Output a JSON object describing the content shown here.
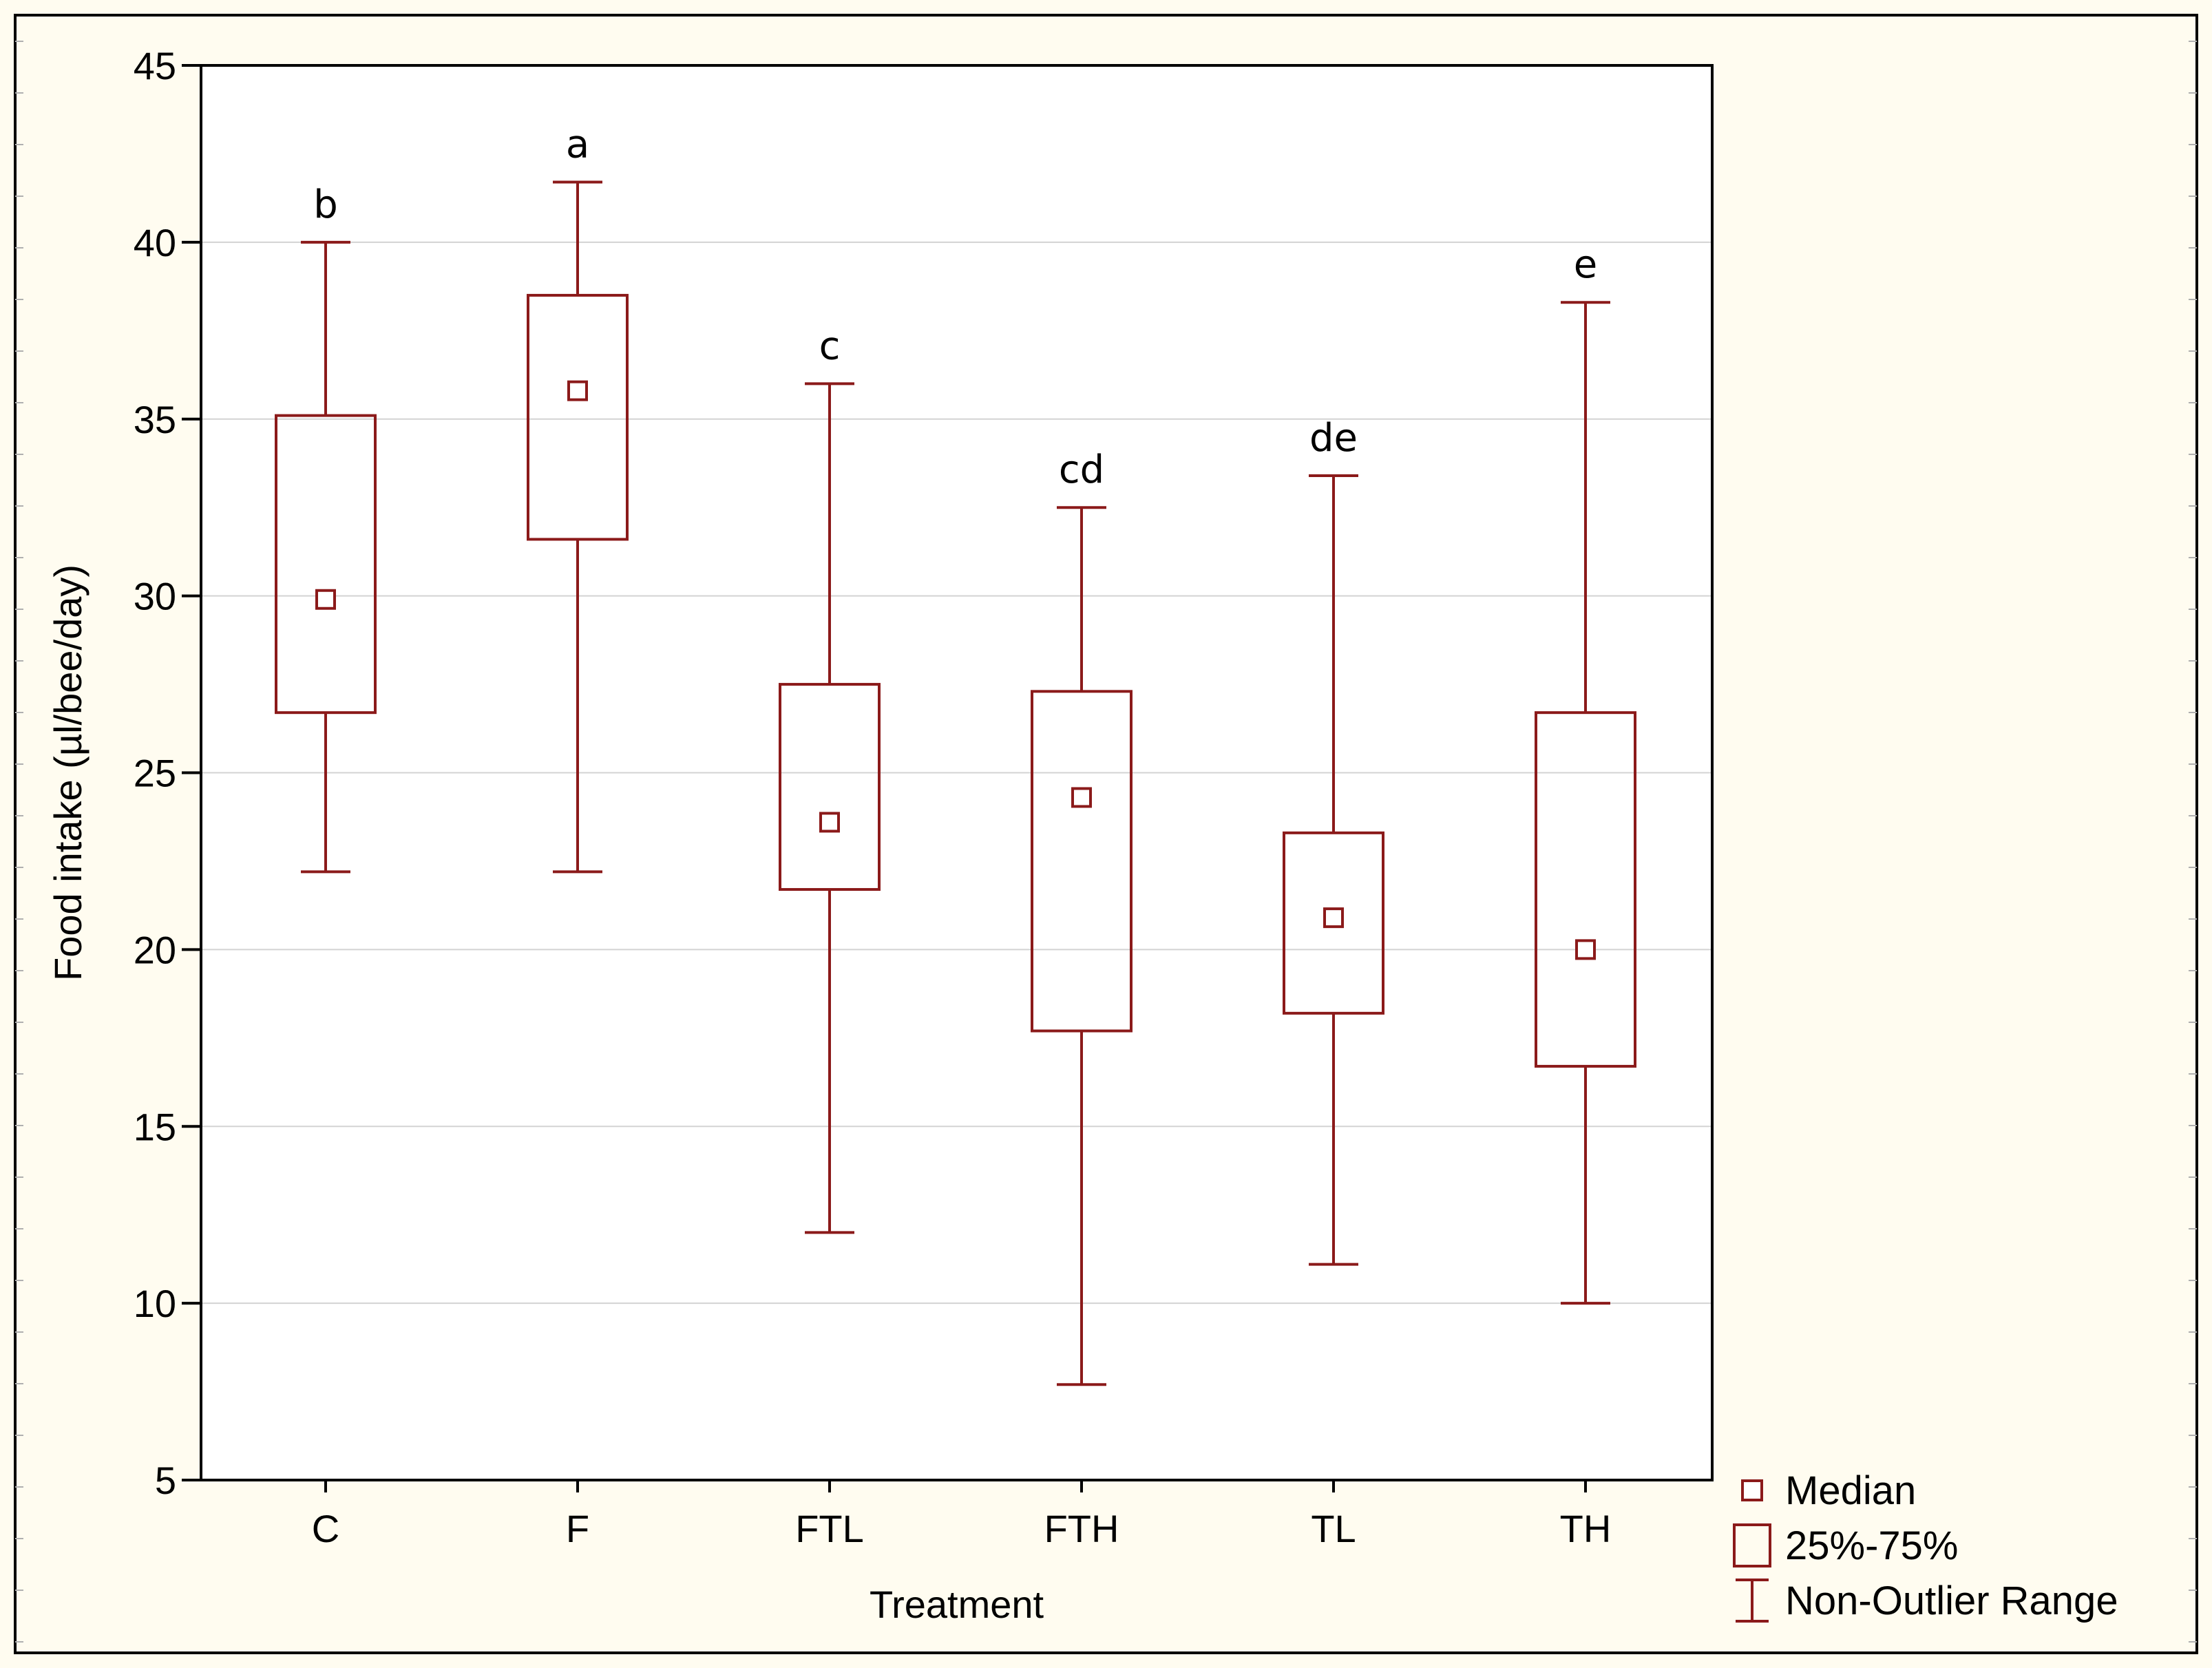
{
  "colors": {
    "page_bg": "#fffcf0",
    "plot_bg": "#ffffff",
    "series": "#8b1a1a",
    "grid": "#d3d3d3",
    "axis": "#000000"
  },
  "chart_data": {
    "type": "boxplot",
    "title": "",
    "xlabel": "Treatment",
    "ylabel": "Food intake (µl/bee/day)",
    "ylim": [
      5,
      45
    ],
    "yticks": [
      5,
      10,
      15,
      20,
      25,
      30,
      35,
      40,
      45
    ],
    "grid": true,
    "categories": [
      "C",
      "F",
      "FTL",
      "FTH",
      "TL",
      "TH"
    ],
    "groups": [
      {
        "category": "C",
        "median": 29.9,
        "q1": 26.7,
        "q3": 35.1,
        "whisker_low": 22.2,
        "whisker_high": 40.0,
        "letter": "b"
      },
      {
        "category": "F",
        "median": 35.8,
        "q1": 31.6,
        "q3": 38.5,
        "whisker_low": 22.2,
        "whisker_high": 41.7,
        "letter": "a"
      },
      {
        "category": "FTL",
        "median": 23.6,
        "q1": 21.7,
        "q3": 27.5,
        "whisker_low": 12.0,
        "whisker_high": 36.0,
        "letter": "c"
      },
      {
        "category": "FTH",
        "median": 24.3,
        "q1": 17.7,
        "q3": 27.3,
        "whisker_low": 7.7,
        "whisker_high": 32.5,
        "letter": "cd"
      },
      {
        "category": "TL",
        "median": 20.9,
        "q1": 18.2,
        "q3": 23.3,
        "whisker_low": 11.1,
        "whisker_high": 33.4,
        "letter": "de"
      },
      {
        "category": "TH",
        "median": 20.0,
        "q1": 16.7,
        "q3": 26.7,
        "whisker_low": 10.0,
        "whisker_high": 38.3,
        "letter": "e"
      }
    ],
    "legend": {
      "position": "bottom-right",
      "entries": [
        {
          "symbol": "median-marker",
          "label": "Median"
        },
        {
          "symbol": "box",
          "label": "25%-75%"
        },
        {
          "symbol": "whisker",
          "label": "Non-Outlier Range"
        }
      ]
    }
  }
}
